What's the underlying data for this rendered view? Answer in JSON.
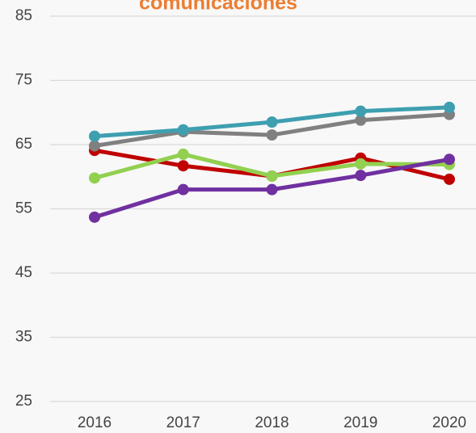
{
  "chart_data": {
    "type": "line",
    "title": "comunicaciones",
    "categories": [
      "2016",
      "2017",
      "2018",
      "2019",
      "2020"
    ],
    "series": [
      {
        "color": "#c00000",
        "values": [
          64.1,
          61.7,
          60.1,
          62.9,
          59.6
        ]
      },
      {
        "color": "#92d050",
        "values": [
          59.8,
          63.5,
          60.1,
          62.0,
          61.9
        ]
      },
      {
        "color": "#808080",
        "values": [
          64.8,
          67.0,
          66.5,
          68.8,
          69.7
        ]
      },
      {
        "color": "#3e9fb0",
        "values": [
          66.3,
          67.3,
          68.5,
          70.2,
          70.8
        ]
      },
      {
        "color": "#7030a0",
        "values": [
          53.7,
          58.0,
          58.0,
          60.2,
          62.7
        ]
      }
    ],
    "ylim": [
      25,
      85
    ],
    "yticks": [
      25,
      35,
      45,
      55,
      65,
      75,
      85
    ],
    "grid": true
  }
}
